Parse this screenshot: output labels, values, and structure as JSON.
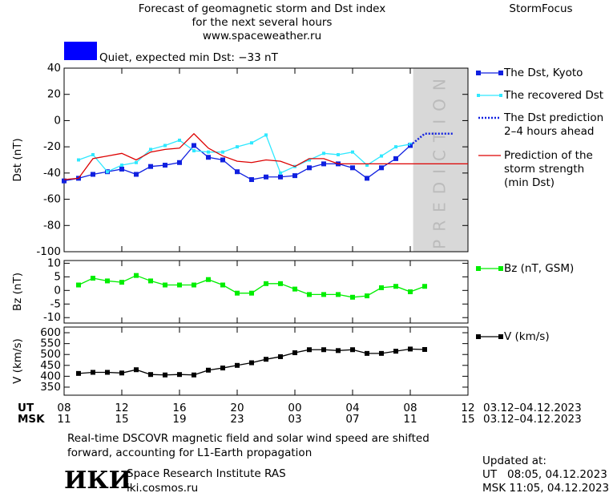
{
  "header": {
    "title": [
      "Forecast of geomagnetic storm and Dst index",
      "for the next several hours",
      "www.spaceweather.ru"
    ],
    "brand": "StormFocus",
    "status": "Quiet, expected min Dst: −33 nT",
    "status_color": "#0000ff"
  },
  "chart_data": [
    {
      "type": "line",
      "y_label": "Dst (nT)",
      "ylim": [
        -100,
        40
      ],
      "yticks": [
        -100,
        -80,
        -60,
        -40,
        -20,
        0,
        20,
        40
      ],
      "shade": {
        "from": 24.2,
        "label": "PREDICTION"
      },
      "series": [
        {
          "name": "The Dst, Kyoto",
          "color": "#1020e0",
          "marker": "square",
          "style": "solid",
          "x": [
            0,
            1,
            2,
            3,
            4,
            5,
            6,
            7,
            8,
            9,
            10,
            11,
            12,
            13,
            14,
            15,
            16,
            17,
            18,
            19,
            20,
            21,
            22,
            23,
            24
          ],
          "values": [
            -46,
            -44,
            -41,
            -39,
            -37,
            -41,
            -35,
            -34,
            -32,
            -19,
            -28,
            -30,
            -39,
            -45,
            -43,
            -43,
            -42,
            -36,
            -33,
            -33,
            -36,
            -44,
            -36,
            -29,
            -19
          ]
        },
        {
          "name": "The recovered Dst",
          "color": "#30e8ff",
          "marker": "small-square",
          "style": "solid",
          "x": [
            1,
            2,
            3,
            4,
            5,
            6,
            7,
            8,
            9,
            10,
            11,
            12,
            13,
            14,
            15,
            16,
            17,
            18,
            19,
            20,
            21,
            22,
            23,
            24
          ],
          "values": [
            -30,
            -26,
            -39,
            -34,
            -32,
            -22,
            -19,
            -15,
            -23,
            -24,
            -24,
            -20,
            -17,
            -11,
            -40,
            -35,
            -30,
            -25,
            -26,
            -24,
            -34,
            -27,
            -20,
            -18
          ]
        },
        {
          "name": "The Dst prediction\n2–4 hours ahead",
          "color": "#1020e0",
          "marker": "none",
          "style": "dotted",
          "x": [
            24,
            25,
            27
          ],
          "values": [
            -19,
            -10,
            -10
          ]
        },
        {
          "name": "Prediction of the\nstorm strength\n(min Dst)",
          "color": "#dd0000",
          "marker": "none",
          "style": "solid",
          "x": [
            0,
            1,
            2,
            3,
            4,
            5,
            6,
            7,
            8,
            9,
            10,
            11,
            12,
            13,
            14,
            15,
            16,
            17,
            18,
            19,
            28
          ],
          "values": [
            -45,
            -44,
            -29,
            -27,
            -25,
            -30,
            -24,
            -22,
            -21,
            -10,
            -21,
            -27,
            -31,
            -32,
            -30,
            -31,
            -35,
            -29,
            -29,
            -33,
            -33
          ]
        }
      ]
    },
    {
      "type": "line",
      "y_label": "Bz (nT)",
      "ylim": [
        -12,
        11
      ],
      "yticks": [
        -10,
        -5,
        0,
        5,
        10
      ],
      "series": [
        {
          "name": "Bz (nT, GSM)",
          "color": "#00ee00",
          "marker": "square",
          "style": "solid",
          "x": [
            1,
            2,
            3,
            4,
            5,
            6,
            7,
            8,
            9,
            10,
            11,
            12,
            13,
            14,
            15,
            16,
            17,
            18,
            19,
            20,
            21,
            22,
            23,
            24,
            25
          ],
          "values": [
            2,
            4.5,
            3.5,
            3,
            5.5,
            3.5,
            2,
            2,
            2,
            4,
            2,
            -1,
            -1,
            2.5,
            2.5,
            0.5,
            -1.5,
            -1.5,
            -1.5,
            -2.5,
            -2,
            1,
            1.5,
            -0.5,
            1.5
          ]
        }
      ]
    },
    {
      "type": "line",
      "y_label": "V (km/s)",
      "ylim": [
        313,
        626
      ],
      "yticks": [
        350,
        400,
        450,
        500,
        550,
        600
      ],
      "xlim": [
        0,
        28
      ],
      "xticks": [
        {
          "value": 0,
          "label": "08"
        },
        {
          "value": 4,
          "label": "12"
        },
        {
          "value": 8,
          "label": "16"
        },
        {
          "value": 12,
          "label": "20"
        },
        {
          "value": 16,
          "label": "00"
        },
        {
          "value": 20,
          "label": "04"
        },
        {
          "value": 24,
          "label": "08"
        },
        {
          "value": 28,
          "label": "12"
        }
      ],
      "xticks_msk": [
        {
          "value": 0,
          "label": "11"
        },
        {
          "value": 4,
          "label": "15"
        },
        {
          "value": 8,
          "label": "19"
        },
        {
          "value": 12,
          "label": "23"
        },
        {
          "value": 16,
          "label": "03"
        },
        {
          "value": 20,
          "label": "07"
        },
        {
          "value": 24,
          "label": "11"
        },
        {
          "value": 28,
          "label": "15"
        }
      ],
      "x_label": "UT",
      "x_label_msk": "MSK",
      "date_range": "03.12–04.12.2023",
      "date_range_msk": "03.12–04.12.2023",
      "series": [
        {
          "name": "V (km/s)",
          "color": "#000000",
          "marker": "square",
          "style": "solid",
          "x": [
            1,
            2,
            3,
            4,
            5,
            6,
            7,
            8,
            9,
            10,
            11,
            12,
            13,
            14,
            15,
            16,
            17,
            18,
            19,
            20,
            21,
            22,
            23,
            24,
            25
          ],
          "values": [
            413,
            418,
            418,
            415,
            430,
            408,
            406,
            408,
            406,
            428,
            438,
            450,
            462,
            478,
            490,
            508,
            522,
            522,
            518,
            522,
            505,
            505,
            515,
            525,
            523
          ]
        }
      ]
    }
  ],
  "footer": {
    "note": [
      "Real-time DSCOVR magnetic field and solar wind speed are shifted",
      "forward, accounting for L1-Earth propagation"
    ],
    "logo": "ИКИ",
    "institute": "Space Research Institute RAS",
    "site": "iki.cosmos.ru",
    "updated": [
      "Updated at:",
      "UT   08:05, 04.12.2023",
      "MSK 11:05, 04.12.2023"
    ]
  }
}
